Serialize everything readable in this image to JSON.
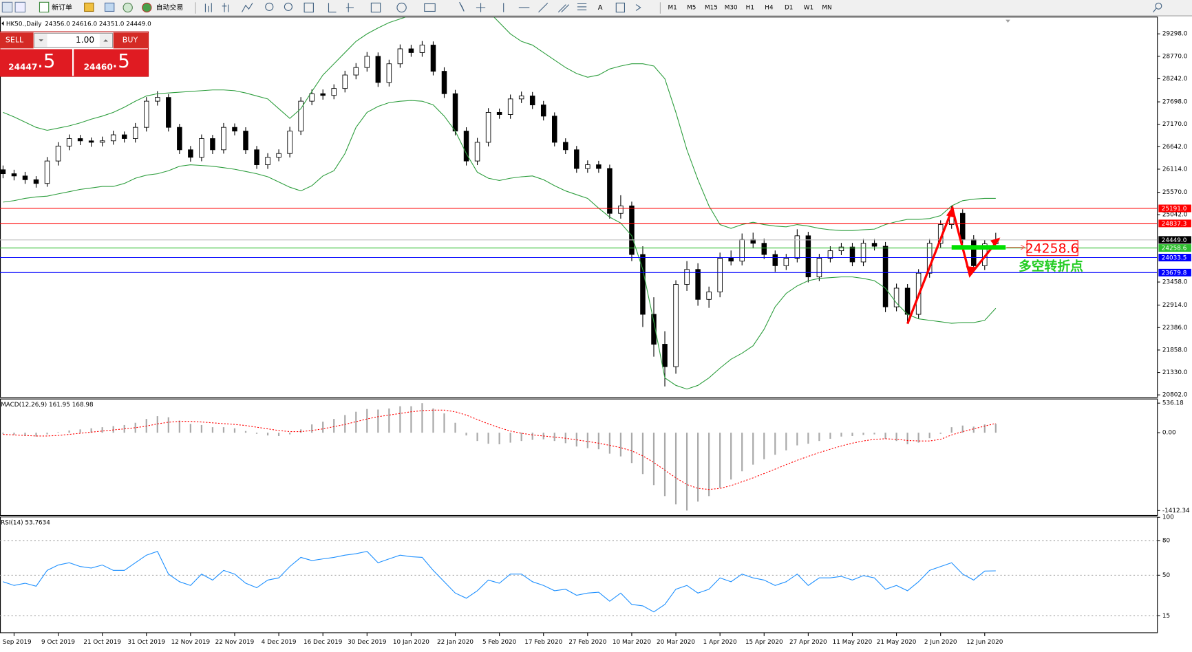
{
  "toolbar": {
    "new_order": "新订单",
    "auto_trade": "自动交易",
    "timeframes": [
      "M1",
      "M5",
      "M15",
      "M30",
      "H1",
      "H4",
      "D1",
      "W1",
      "MN"
    ]
  },
  "trade_panel": {
    "sell": "SELL",
    "buy": "BUY",
    "lots": "1.00",
    "bid_main": "24447",
    "bid_frac": ".5",
    "ask_main": "24460",
    "ask_frac": ".5"
  },
  "chart_data": [
    {
      "type": "candlestick",
      "title": "HK50.,Daily",
      "header": "24356.0 24616.0 24351.0 24449.0",
      "categories": [
        null,
        "5 Sep 2019",
        null,
        null,
        null,
        "9 Oct 2019",
        null,
        null,
        null,
        "21 Oct 2019",
        null,
        null,
        null,
        "31 Oct 2019",
        null,
        null,
        null,
        "12 Nov 2019",
        null,
        null,
        null,
        "22 Nov 2019",
        null,
        null,
        null,
        "4 Dec 2019",
        null,
        null,
        null,
        "16 Dec 2019",
        null,
        null,
        null,
        "30 Dec 2019",
        null,
        null,
        null,
        "10 Jan 2020",
        null,
        null,
        null,
        "22 Jan 2020",
        null,
        null,
        null,
        "5 Feb 2020",
        null,
        null,
        null,
        "17 Feb 2020",
        null,
        null,
        null,
        "27 Feb 2020",
        null,
        null,
        null,
        "10 Mar 2020",
        null,
        null,
        null,
        "20 Mar 2020",
        null,
        null,
        null,
        "1 Apr 2020",
        null,
        null,
        null,
        "15 Apr 2020",
        null,
        null,
        null,
        "27 Apr 2020",
        null,
        null,
        null,
        "11 May 2020",
        null,
        null,
        null,
        "21 May 2020",
        null,
        null,
        null,
        "2 Jun 2020",
        null,
        null,
        null,
        "12 Jun 2020",
        null
      ],
      "ohlc": [
        [
          26100,
          26200,
          25900,
          26007
        ],
        [
          26007,
          26100,
          25850,
          25954
        ],
        [
          25954,
          26050,
          25770,
          25866
        ],
        [
          25866,
          25950,
          25680,
          25778
        ],
        [
          25778,
          26400,
          25700,
          26306
        ],
        [
          26306,
          26750,
          26200,
          26658
        ],
        [
          26658,
          26930,
          26560,
          26834
        ],
        [
          26834,
          26920,
          26680,
          26780
        ],
        [
          26780,
          26860,
          26640,
          26746
        ],
        [
          26746,
          26880,
          26650,
          26781
        ],
        [
          26781,
          27020,
          26690,
          26922
        ],
        [
          26922,
          27000,
          26740,
          26834
        ],
        [
          26834,
          27200,
          26740,
          27098
        ],
        [
          27098,
          27810,
          27000,
          27714
        ],
        [
          27714,
          27950,
          27610,
          27802
        ],
        [
          27802,
          27880,
          27000,
          27098
        ],
        [
          27098,
          27180,
          26470,
          26570
        ],
        [
          26570,
          26660,
          26290,
          26394
        ],
        [
          26394,
          26930,
          26300,
          26834
        ],
        [
          26834,
          26920,
          26470,
          26570
        ],
        [
          26570,
          27200,
          26480,
          27098
        ],
        [
          27098,
          27190,
          26910,
          27010
        ],
        [
          27010,
          27100,
          26470,
          26570
        ],
        [
          26570,
          26660,
          26120,
          26218
        ],
        [
          26218,
          26490,
          26120,
          26394
        ],
        [
          26394,
          26580,
          26300,
          26482
        ],
        [
          26482,
          27110,
          26390,
          27010
        ],
        [
          27010,
          27810,
          26920,
          27714
        ],
        [
          27714,
          27990,
          27620,
          27890
        ],
        [
          27890,
          27990,
          27750,
          27850
        ],
        [
          27850,
          28110,
          27760,
          28013
        ],
        [
          28013,
          28430,
          27920,
          28330
        ],
        [
          28330,
          28610,
          28230,
          28506
        ],
        [
          28506,
          28870,
          28410,
          28770
        ],
        [
          28770,
          28860,
          28050,
          28154
        ],
        [
          28154,
          28690,
          28060,
          28594
        ],
        [
          28594,
          29050,
          28500,
          28946
        ],
        [
          28946,
          29040,
          28760,
          28858
        ],
        [
          28858,
          29130,
          28760,
          29034
        ],
        [
          29034,
          29120,
          28320,
          28418
        ],
        [
          28418,
          28510,
          27790,
          27890
        ],
        [
          27890,
          27980,
          26910,
          27010
        ],
        [
          27010,
          27100,
          26200,
          26306
        ],
        [
          26306,
          26850,
          26210,
          26746
        ],
        [
          26746,
          27550,
          26650,
          27450
        ],
        [
          27450,
          27540,
          27300,
          27400
        ],
        [
          27400,
          27870,
          27300,
          27767
        ],
        [
          27767,
          27940,
          27670,
          27837
        ],
        [
          27837,
          27930,
          27530,
          27626
        ],
        [
          27626,
          27720,
          27260,
          27362
        ],
        [
          27362,
          27450,
          26650,
          26746
        ],
        [
          26746,
          26840,
          26470,
          26570
        ],
        [
          26570,
          26660,
          26030,
          26130
        ],
        [
          26130,
          26320,
          26030,
          26218
        ],
        [
          26218,
          26310,
          26030,
          26130
        ],
        [
          26130,
          26220,
          24950,
          25074
        ],
        [
          25074,
          25500,
          24950,
          25250
        ],
        [
          25250,
          25350,
          23950,
          24106
        ],
        [
          24106,
          24300,
          22400,
          22698
        ],
        [
          22698,
          23100,
          21700,
          21994
        ],
        [
          21994,
          22300,
          21000,
          21466
        ],
        [
          21466,
          23500,
          21300,
          23402
        ],
        [
          23402,
          23950,
          23250,
          23754
        ],
        [
          23754,
          23900,
          22900,
          23050
        ],
        [
          23050,
          23350,
          22850,
          23226
        ],
        [
          23226,
          24150,
          23100,
          24018
        ],
        [
          24018,
          24200,
          23850,
          23950
        ],
        [
          23950,
          24600,
          23850,
          24458
        ],
        [
          24458,
          24620,
          24250,
          24370
        ],
        [
          24370,
          24480,
          24000,
          24106
        ],
        [
          24106,
          24200,
          23700,
          23842
        ],
        [
          23842,
          24120,
          23740,
          24018
        ],
        [
          24018,
          24700,
          23920,
          24546
        ],
        [
          24546,
          24640,
          23450,
          23578
        ],
        [
          23578,
          24120,
          23480,
          24018
        ],
        [
          24018,
          24300,
          23920,
          24194
        ],
        [
          24194,
          24380,
          24090,
          24282
        ],
        [
          24282,
          24380,
          23830,
          23930
        ],
        [
          23930,
          24470,
          23830,
          24370
        ],
        [
          24370,
          24470,
          24200,
          24300
        ],
        [
          24300,
          24400,
          22750,
          22874
        ],
        [
          22874,
          23420,
          22770,
          23314
        ],
        [
          23314,
          23410,
          22500,
          22698
        ],
        [
          22698,
          23760,
          22600,
          23666
        ],
        [
          23666,
          24470,
          23560,
          24370
        ],
        [
          24370,
          24910,
          24270,
          24810
        ],
        [
          24810,
          25250,
          24710,
          25074
        ],
        [
          25074,
          25170,
          24360,
          24458
        ],
        [
          24458,
          24560,
          23740,
          23842
        ],
        [
          23842,
          24450,
          23740,
          24356
        ],
        [
          24356,
          24616,
          24351,
          24449
        ]
      ],
      "bollinger_upper": [
        27450,
        27344,
        27221,
        27098,
        27028,
        27080,
        27133,
        27204,
        27292,
        27362,
        27450,
        27573,
        27714,
        27837,
        27890,
        27908,
        27925,
        27943,
        27960,
        27978,
        27978,
        27960,
        27908,
        27837,
        27767,
        27538,
        27309,
        27538,
        27943,
        28330,
        28594,
        28858,
        29122,
        29298,
        29439,
        29562,
        29650,
        29738,
        29773,
        29826,
        29914,
        30002,
        30090,
        30002,
        29826,
        29562,
        29298,
        29122,
        29034,
        28858,
        28682,
        28506,
        28365,
        28277,
        28330,
        28471,
        28541,
        28594,
        28594,
        28541,
        28242,
        27450,
        26570,
        25866,
        25250,
        24810,
        24722,
        24810,
        24863,
        24810,
        24775,
        24757,
        24810,
        24775,
        24722,
        24687,
        24669,
        24669,
        24687,
        24704,
        24810,
        24880,
        24933,
        24933,
        24951,
        25021,
        25250,
        25373,
        25408,
        25426,
        25426
      ],
      "bollinger_lower": [
        25338,
        25373,
        25426,
        25461,
        25479,
        25532,
        25584,
        25637,
        25672,
        25708,
        25708,
        25778,
        25901,
        25972,
        26007,
        26077,
        26183,
        26218,
        26200,
        26183,
        26148,
        26112,
        26060,
        26007,
        25936,
        25813,
        25690,
        25602,
        25725,
        25954,
        26077,
        26482,
        27098,
        27450,
        27591,
        27679,
        27714,
        27732,
        27714,
        27626,
        27362,
        27010,
        26482,
        26042,
        25901,
        25848,
        25901,
        25936,
        25954,
        25866,
        25725,
        25602,
        25514,
        25426,
        25197,
        24986,
        24845,
        24546,
        23754,
        22522,
        21202,
        21026,
        20938,
        21026,
        21202,
        21431,
        21642,
        21783,
        21959,
        22346,
        22874,
        23191,
        23367,
        23490,
        23543,
        23560,
        23578,
        23578,
        23543,
        23490,
        23314,
        22962,
        22698,
        22592,
        22557,
        22522,
        22487,
        22504,
        22504,
        22557,
        22839
      ],
      "band_color": "#2e9e3e",
      "ylim": [
        20750,
        29650
      ],
      "yticks": [
        {
          "value": 29298,
          "label": "29298.0"
        },
        {
          "value": 28770,
          "label": "28770.0"
        },
        {
          "value": 28242,
          "label": "28242.0"
        },
        {
          "value": 27698,
          "label": "27698.0"
        },
        {
          "value": 27170,
          "label": "27170.0"
        },
        {
          "value": 26642,
          "label": "26642.0"
        },
        {
          "value": 26114,
          "label": "26114.0"
        },
        {
          "value": 25570,
          "label": "25570.0"
        },
        {
          "value": 25042,
          "label": "25042.0"
        },
        {
          "value": 23458,
          "label": "23458.0"
        },
        {
          "value": 22914,
          "label": "22914.0"
        },
        {
          "value": 22386,
          "label": "22386.0"
        },
        {
          "value": 21858,
          "label": "21858.0"
        },
        {
          "value": 21330,
          "label": "21330.0"
        },
        {
          "value": 20802,
          "label": "20802.0"
        }
      ],
      "levels": [
        {
          "value": 25191,
          "label": "25191.0",
          "color": "#ff0000"
        },
        {
          "value": 24837.3,
          "label": "24837.3",
          "color": "#ff0000"
        },
        {
          "value": 24449,
          "label": "24449.0",
          "color": "#000000"
        },
        {
          "value": 24258.6,
          "label": "24258.6",
          "color": "#2ebd2e"
        },
        {
          "value": 24033.5,
          "label": "24033.5",
          "color": "#0000ff"
        },
        {
          "value": 23679.8,
          "label": "23679.8",
          "color": "#0000ff"
        }
      ],
      "annotations": {
        "price_box": "24258.6",
        "turning_point": "多空转折点"
      }
    },
    {
      "type": "macd",
      "title": "MACD(12,26,9) 161.95 168.98",
      "values": [
        -20,
        -40,
        -60,
        -70,
        -30,
        10,
        40,
        60,
        80,
        100,
        120,
        140,
        180,
        250,
        300,
        280,
        220,
        160,
        140,
        100,
        100,
        80,
        30,
        -20,
        -50,
        -60,
        -30,
        60,
        150,
        200,
        250,
        320,
        380,
        430,
        420,
        440,
        480,
        480,
        536.18,
        440,
        350,
        180,
        -50,
        -150,
        -200,
        -210,
        -180,
        -150,
        -130,
        -120,
        -150,
        -190,
        -250,
        -280,
        -300,
        -380,
        -430,
        -550,
        -750,
        -950,
        -1150,
        -1300,
        -1412.34,
        -1250,
        -1150,
        -1000,
        -850,
        -700,
        -580,
        -480,
        -400,
        -320,
        -230,
        -200,
        -150,
        -110,
        -70,
        -60,
        -40,
        -30,
        -110,
        -150,
        -210,
        -180,
        -100,
        -20,
        100,
        130,
        110,
        150,
        161.95
      ],
      "signal": [
        -30,
        -40,
        -50,
        -60,
        -60,
        -50,
        -30,
        -10,
        10,
        30,
        50,
        70,
        90,
        120,
        160,
        190,
        205,
        205,
        195,
        180,
        165,
        150,
        130,
        100,
        70,
        40,
        20,
        20,
        40,
        70,
        110,
        150,
        200,
        250,
        290,
        320,
        350,
        380,
        400,
        410,
        410,
        380,
        320,
        240,
        160,
        90,
        30,
        -10,
        -40,
        -60,
        -80,
        -100,
        -130,
        -160,
        -190,
        -230,
        -270,
        -330,
        -420,
        -540,
        -680,
        -820,
        -940,
        -1010,
        -1030,
        -1010,
        -960,
        -890,
        -820,
        -740,
        -660,
        -580,
        -500,
        -430,
        -360,
        -300,
        -240,
        -190,
        -150,
        -120,
        -110,
        -120,
        -140,
        -150,
        -150,
        -120,
        -40,
        20,
        70,
        120,
        168.98
      ],
      "color": "#a9a9a9",
      "signal_color": "#ff0000",
      "ylim": [
        -1412.34,
        536.18
      ],
      "yticks": [
        536.18,
        {
          "value": 0,
          "label": "0.00"
        },
        -1412.34
      ]
    },
    {
      "type": "line",
      "title": "RSI(14) 53.7634",
      "values": [
        44.4,
        41.2,
        43.1,
        40.5,
        54.2,
        58.8,
        60.8,
        57.5,
        56.2,
        58.8,
        54.2,
        54.2,
        60.8,
        67.3,
        70.6,
        51.0,
        44.4,
        41.2,
        51.0,
        45.8,
        54.2,
        51.0,
        43.1,
        39.2,
        45.8,
        47.7,
        57.5,
        65.4,
        62.7,
        64.1,
        65.4,
        67.3,
        68.6,
        70.6,
        60.8,
        64.1,
        67.3,
        66.0,
        65.4,
        54.2,
        44.4,
        34.6,
        30.1,
        36.6,
        45.8,
        43.1,
        51.0,
        51.0,
        44.4,
        41.2,
        36.6,
        37.9,
        32.7,
        34.6,
        35.3,
        27.5,
        34.6,
        24.8,
        23.5,
        18.3,
        24.8,
        37.9,
        41.2,
        34.6,
        37.9,
        47.7,
        44.4,
        51.0,
        47.7,
        45.8,
        41.2,
        44.4,
        51.0,
        41.2,
        47.7,
        47.7,
        49.0,
        45.8,
        49.7,
        47.7,
        37.9,
        41.2,
        36.6,
        44.4,
        54.2,
        57.5,
        60.8,
        51.0,
        45.8,
        53.6,
        53.7634
      ],
      "color": "#1e90ff",
      "ylim": [
        0,
        100
      ],
      "yticks": [
        100,
        80,
        50,
        15
      ],
      "grid": true
    }
  ]
}
